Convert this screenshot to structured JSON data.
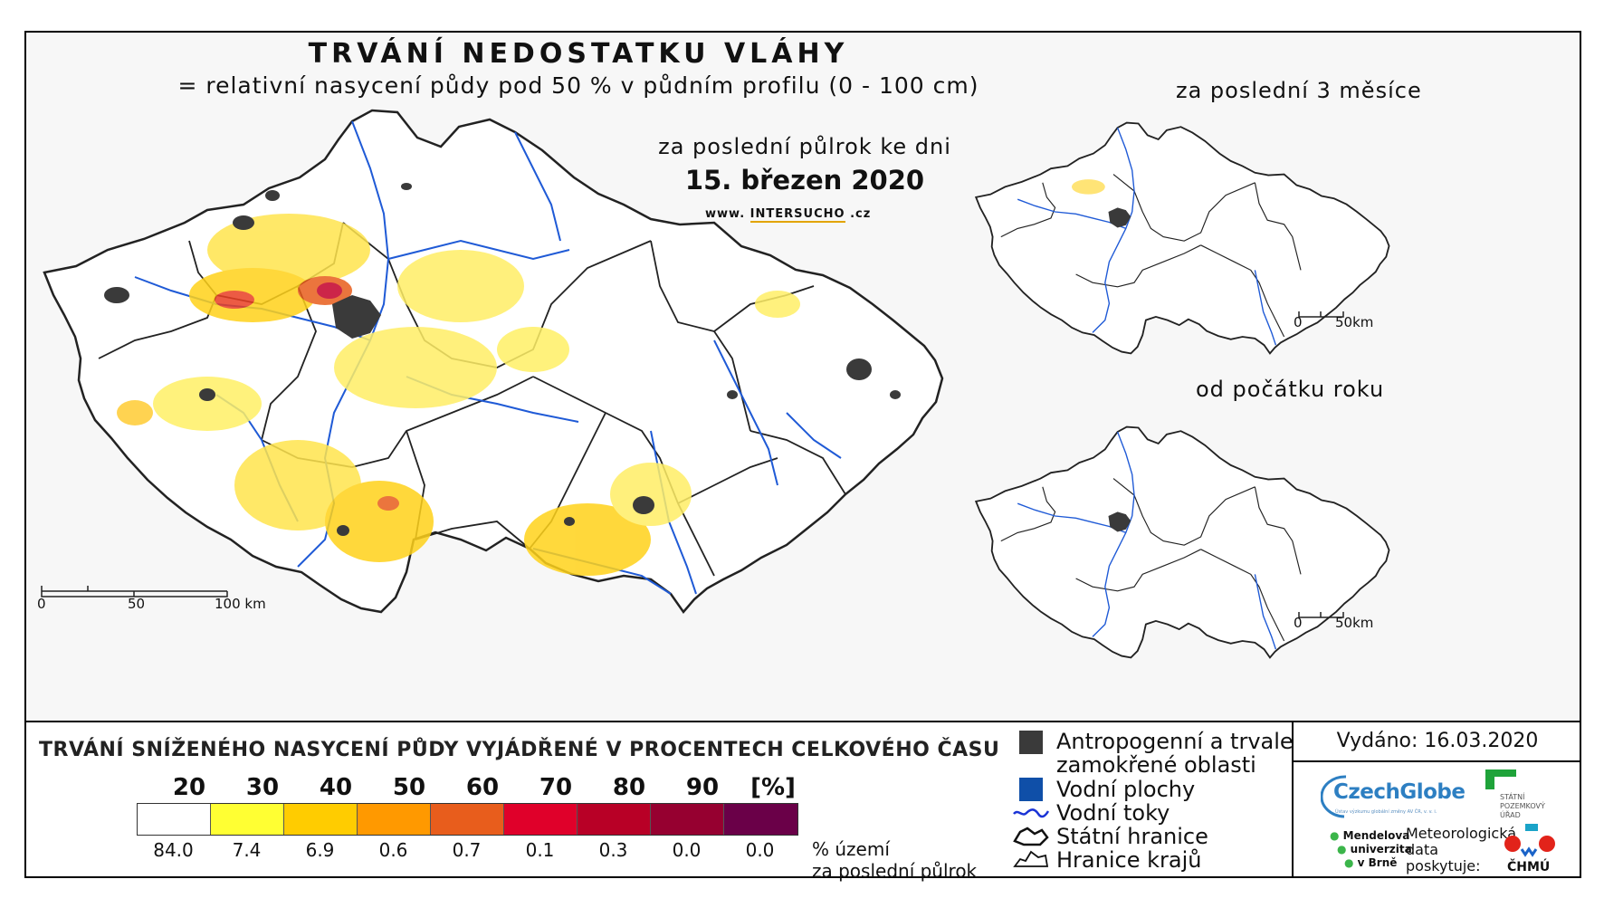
{
  "title": "TRVÁNÍ NEDOSTATKU VLÁHY",
  "subtitle": "= relativní nasycení půdy pod 50 % v půdním profilu (0 - 100 cm)",
  "main_map": {
    "period_label": "za poslední půlrok ke dni",
    "date": "15. březen 2020",
    "website": {
      "prefix": "www.",
      "main": "INTERSUCHO",
      "suffix": ".cz"
    },
    "scale_labels": [
      "0",
      "50",
      "100 km"
    ]
  },
  "insets": [
    {
      "title": "za poslední 3 měsíce",
      "scale_labels": [
        "0",
        "50km"
      ]
    },
    {
      "title": "od počátku roku",
      "scale_labels": [
        "0",
        "50km"
      ]
    }
  ],
  "legend": {
    "title": "TRVÁNÍ SNÍŽENÉHO NASYCENÍ PŮDY VYJÁDŘENÉ V PROCENTECH CELKOVÉHO ČASU",
    "ticks": [
      "20",
      "30",
      "40",
      "50",
      "60",
      "70",
      "80",
      "90",
      "[%]"
    ],
    "bins": [
      {
        "color": "#ffffff",
        "share": "84.0"
      },
      {
        "color": "#ffff33",
        "share": "7.4"
      },
      {
        "color": "#ffcc00",
        "share": "6.9"
      },
      {
        "color": "#ff9900",
        "share": "0.6"
      },
      {
        "color": "#e85d1c",
        "share": "0.7"
      },
      {
        "color": "#e0002a",
        "share": "0.1"
      },
      {
        "color": "#b80026",
        "share": "0.3"
      },
      {
        "color": "#960030",
        "share": "0.0"
      },
      {
        "color": "#6a0048",
        "share": "0.0"
      }
    ],
    "share_note_line1": "% území",
    "share_note_line2": "za poslední půlrok",
    "symbols": [
      {
        "icon": "urban-area-square-icon",
        "color": "#3a3a3a",
        "label_line1": "Antropogenní a trvale",
        "label_line2": "zamokřené oblasti"
      },
      {
        "icon": "water-body-square-icon",
        "color": "#0f4fa8",
        "label": "Vodní plochy"
      },
      {
        "icon": "river-line-icon",
        "color": "#1a33d6",
        "label": "Vodní toky"
      },
      {
        "icon": "state-border-icon",
        "color": "#111111",
        "label": "Státní hranice"
      },
      {
        "icon": "region-border-icon",
        "color": "#111111",
        "label": "Hranice krajů"
      }
    ]
  },
  "info": {
    "issued": "Vydáno: 16.03.2020",
    "czechglobe": "CzechGlobe",
    "czechglobe_sub": "Ústav výzkumu globální změny AV ČR, v. v. i.",
    "spu": [
      "STÁTNÍ",
      "POZEMKOVÝ",
      "ÚŘAD"
    ],
    "mendel": [
      "Mendelova",
      "univerzita",
      "v Brně"
    ],
    "meteo": [
      "Meteorologická",
      "data",
      "poskytuje:"
    ],
    "chmu": "ČHMÚ"
  }
}
